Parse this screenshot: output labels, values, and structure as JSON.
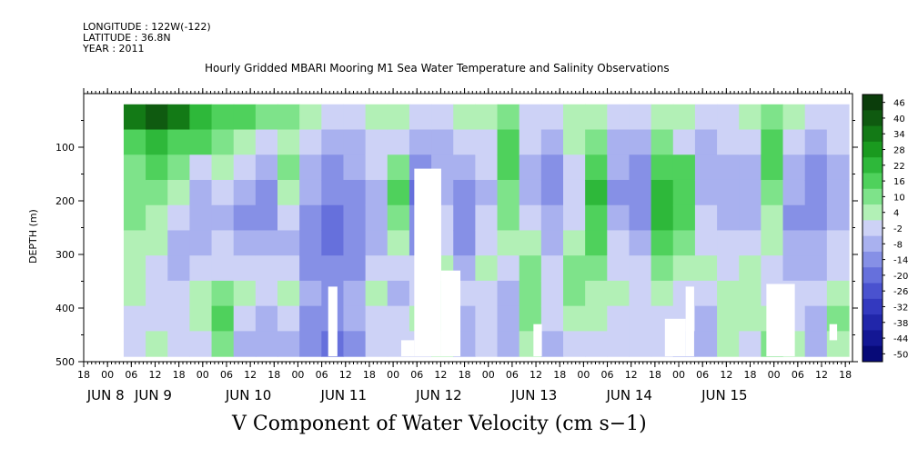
{
  "header": {
    "longitude": "LONGITUDE : 122W(-122)",
    "latitude": "LATITUDE : 36.8N",
    "year": "YEAR : 2011"
  },
  "chart_data": {
    "type": "heatmap",
    "title": "Hourly Gridded MBARI Mooring M1 Sea Water Temperature and Salinity Observations",
    "xlabel": "V Component of Water Velocity (cm s−1)",
    "ylabel": "DEPTH (m)",
    "ylim": [
      500,
      0
    ],
    "y_ticks": [
      100,
      200,
      300,
      400,
      500
    ],
    "x_hour_ticks": [
      "18",
      "00",
      "06",
      "12",
      "18",
      "00",
      "06",
      "12",
      "18",
      "00",
      "06",
      "12",
      "18",
      "00",
      "06",
      "12",
      "18",
      "00",
      "06",
      "12",
      "18",
      "00",
      "06",
      "12",
      "18",
      "00",
      "06",
      "12",
      "18",
      "00",
      "06",
      "12",
      "18"
    ],
    "x_day_labels": [
      {
        "label": "JUN  8",
        "hour_index": 1
      },
      {
        "label": "JUN  9",
        "hour_index": 3
      },
      {
        "label": "JUN 10",
        "hour_index": 7
      },
      {
        "label": "JUN 11",
        "hour_index": 11
      },
      {
        "label": "JUN 12",
        "hour_index": 15
      },
      {
        "label": "JUN 13",
        "hour_index": 19
      },
      {
        "label": "JUN 14",
        "hour_index": 23
      },
      {
        "label": "JUN 15",
        "hour_index": 27
      }
    ],
    "colorbar_levels": [
      46,
      40,
      34,
      28,
      22,
      16,
      10,
      4,
      -2,
      -8,
      -14,
      -20,
      -26,
      -32,
      -38,
      -44,
      -50
    ],
    "colorbar_colors": [
      "#0b3d0b",
      "#0f5a10",
      "#137a16",
      "#1a9a1f",
      "#2eb83a",
      "#4fd15c",
      "#7ee38a",
      "#b2f0b6",
      "#cdd2f6",
      "#a9b1ef",
      "#8690e6",
      "#6670dc",
      "#4a52cf",
      "#3339bf",
      "#2126aa",
      "#131794",
      "#070a78"
    ],
    "columns": [
      {
        "time_frac": 0.02,
        "values": [
          30,
          14,
          8,
          6,
          4,
          2,
          0,
          -2,
          -4,
          -6
        ]
      },
      {
        "time_frac": 0.05,
        "values": [
          34,
          18,
          10,
          6,
          2,
          -2,
          -6,
          -8,
          -4,
          -2
        ]
      },
      {
        "time_frac": 0.08,
        "values": [
          28,
          12,
          6,
          -2,
          -8,
          -12,
          -10,
          -6,
          -4,
          -8
        ]
      },
      {
        "time_frac": 0.11,
        "values": [
          20,
          10,
          -4,
          -10,
          -14,
          -12,
          -6,
          -2,
          2,
          -4
        ]
      },
      {
        "time_frac": 0.14,
        "values": [
          14,
          6,
          2,
          -6,
          -10,
          -8,
          -4,
          6,
          10,
          4
        ]
      },
      {
        "time_frac": 0.17,
        "values": [
          10,
          -2,
          -8,
          -12,
          -16,
          -14,
          -8,
          -2,
          -6,
          -10
        ]
      },
      {
        "time_frac": 0.2,
        "values": [
          8,
          -4,
          -12,
          -16,
          -18,
          -14,
          -8,
          -4,
          -10,
          -12
        ]
      },
      {
        "time_frac": 0.23,
        "values": [
          4,
          -2,
          6,
          2,
          -8,
          -12,
          -6,
          -2,
          -8,
          -10
        ]
      },
      {
        "time_frac": 0.26,
        "values": [
          -2,
          -6,
          -10,
          -14,
          -18,
          -20,
          -18,
          -14,
          -16,
          -18
        ]
      },
      {
        "time_frac": 0.29,
        "values": [
          -6,
          -12,
          -16,
          -20,
          -22,
          -22,
          -18,
          -16,
          -20,
          -22
        ]
      },
      {
        "time_frac": 0.32,
        "values": [
          -4,
          -10,
          -14,
          -18,
          -20,
          -18,
          -16,
          -12,
          -14,
          -16
        ]
      },
      {
        "time_frac": 0.35,
        "values": [
          2,
          -4,
          -8,
          -12,
          -14,
          -10,
          -6,
          -2,
          -6,
          -8
        ]
      },
      {
        "time_frac": 0.38,
        "values": [
          -2,
          -8,
          4,
          10,
          6,
          -2,
          -8,
          -10,
          -6,
          -4
        ]
      },
      {
        "time_frac": 0.41,
        "values": [
          -6,
          -14,
          -18,
          -22,
          -20,
          -16,
          -8,
          -4,
          -2,
          -6
        ]
      },
      {
        "time_frac": 0.44,
        "values": [
          -4,
          -10,
          -14,
          -12,
          -8,
          -4,
          2,
          6,
          4,
          -2
        ]
      },
      {
        "time_frac": 0.47,
        "values": [
          -2,
          -8,
          -12,
          -16,
          -18,
          -16,
          -12,
          -8,
          -10,
          -12
        ]
      },
      {
        "time_frac": 0.5,
        "values": [
          2,
          -4,
          -8,
          -10,
          -8,
          -4,
          -2,
          -6,
          -8,
          -6
        ]
      },
      {
        "time_frac": 0.53,
        "values": [
          6,
          10,
          12,
          8,
          4,
          -2,
          -6,
          -10,
          -12,
          -10
        ]
      },
      {
        "time_frac": 0.56,
        "values": [
          -4,
          -8,
          -12,
          -10,
          -6,
          -2,
          4,
          8,
          6,
          2
        ]
      },
      {
        "time_frac": 0.59,
        "values": [
          -6,
          -12,
          -16,
          -18,
          -14,
          -10,
          -8,
          -6,
          -8,
          -10
        ]
      },
      {
        "time_frac": 0.62,
        "values": [
          2,
          -2,
          -6,
          -8,
          -4,
          2,
          6,
          4,
          -2,
          -4
        ]
      },
      {
        "time_frac": 0.65,
        "values": [
          -2,
          8,
          12,
          16,
          14,
          10,
          6,
          2,
          -2,
          -6
        ]
      },
      {
        "time_frac": 0.68,
        "values": [
          -6,
          -10,
          -14,
          -16,
          -12,
          -8,
          -4,
          -2,
          -6,
          -8
        ]
      },
      {
        "time_frac": 0.71,
        "values": [
          -8,
          -12,
          -16,
          -18,
          -16,
          -12,
          -8,
          -6,
          -4,
          -6
        ]
      },
      {
        "time_frac": 0.74,
        "values": [
          2,
          8,
          14,
          18,
          16,
          10,
          4,
          -2,
          -6,
          -8
        ]
      },
      {
        "time_frac": 0.77,
        "values": [
          -2,
          -6,
          10,
          14,
          12,
          6,
          2,
          -4,
          -8,
          -10
        ]
      },
      {
        "time_frac": 0.8,
        "values": [
          -6,
          -10,
          -14,
          -12,
          -8,
          -4,
          -2,
          -6,
          -10,
          -12
        ]
      },
      {
        "time_frac": 0.83,
        "values": [
          -4,
          -8,
          -12,
          -14,
          -12,
          -8,
          -4,
          -2,
          2,
          -2
        ]
      },
      {
        "time_frac": 0.86,
        "values": [
          -2,
          -6,
          -10,
          -12,
          -10,
          -6,
          -2,
          2,
          -2,
          -4
        ]
      },
      {
        "time_frac": 0.89,
        "values": [
          8,
          12,
          10,
          6,
          2,
          -2,
          -6,
          -4,
          2,
          6
        ]
      },
      {
        "time_frac": 0.92,
        "values": [
          -2,
          -6,
          -10,
          -14,
          -16,
          -14,
          -10,
          -6,
          -4,
          -2
        ]
      },
      {
        "time_frac": 0.95,
        "values": [
          -8,
          -12,
          -16,
          -18,
          -18,
          -14,
          -10,
          -8,
          -10,
          -12
        ]
      },
      {
        "time_frac": 0.98,
        "values": [
          -4,
          -8,
          -10,
          -12,
          -10,
          -8,
          -4,
          2,
          6,
          2
        ]
      }
    ],
    "missing_regions": [
      {
        "t0": 0.318,
        "t1": 0.33,
        "d0": 360,
        "d1": 490
      },
      {
        "t0": 0.43,
        "t1": 0.465,
        "d0": 140,
        "d1": 490
      },
      {
        "t0": 0.465,
        "t1": 0.49,
        "d0": 330,
        "d1": 490
      },
      {
        "t0": 0.413,
        "t1": 0.43,
        "d0": 460,
        "d1": 490
      },
      {
        "t0": 0.585,
        "t1": 0.596,
        "d0": 430,
        "d1": 490
      },
      {
        "t0": 0.756,
        "t1": 0.783,
        "d0": 420,
        "d1": 490
      },
      {
        "t0": 0.783,
        "t1": 0.794,
        "d0": 360,
        "d1": 490
      },
      {
        "t0": 0.888,
        "t1": 0.925,
        "d0": 355,
        "d1": 490
      },
      {
        "t0": 0.97,
        "t1": 0.98,
        "d0": 430,
        "d1": 460
      }
    ],
    "data_start_frac": 0.052
  }
}
